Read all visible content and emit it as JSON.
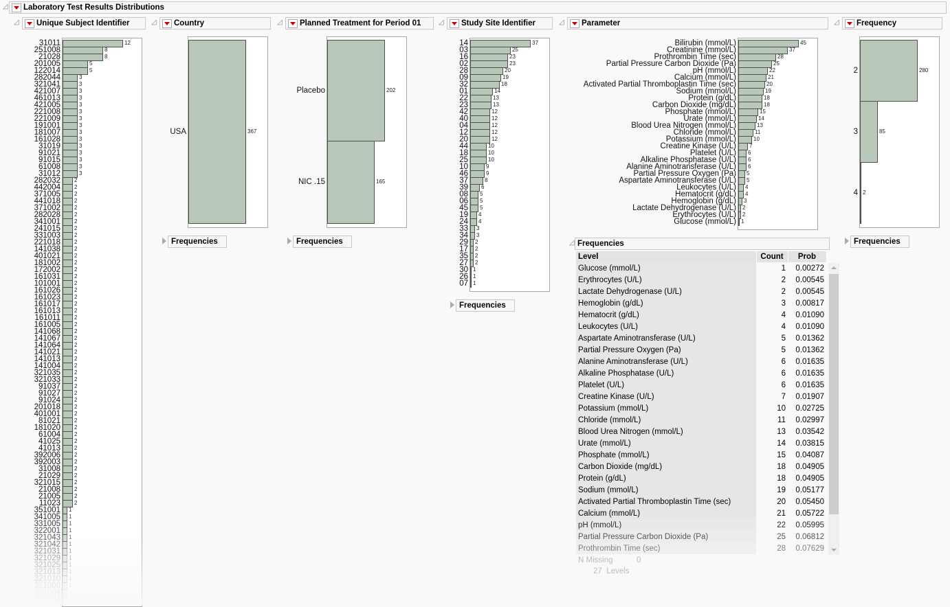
{
  "report": {
    "title": "Laboratory Test Results Distributions"
  },
  "frequencies_label": "Frequencies",
  "panels": [
    {
      "title": "Unique Subject Identifier",
      "levels": [
        "31011",
        "251008",
        "21028",
        "201005",
        "122014",
        "282044",
        "321041",
        "421007",
        "461013",
        "421005",
        "221008",
        "221009",
        "191001",
        "181007",
        "161028",
        "31019",
        "91021",
        "91015",
        "61008",
        "31012",
        "282032",
        "442004",
        "371005",
        "441018",
        "371002",
        "282028",
        "341001",
        "241015",
        "331003",
        "221018",
        "141038",
        "401021",
        "181002",
        "172002",
        "161031",
        "101001",
        "161026",
        "161023",
        "161017",
        "161013",
        "161011",
        "161005",
        "141068",
        "141067",
        "141064",
        "141021",
        "141013",
        "141004",
        "321035",
        "321033",
        "91037",
        "91027",
        "91024",
        "201018",
        "401001",
        "81021",
        "181020",
        "61004",
        "41025",
        "41013",
        "392006",
        "392003",
        "31008",
        "21029",
        "321015",
        "21008",
        "21005",
        "11023",
        "351001",
        "341005",
        "331005",
        "322001",
        "321043",
        "321042",
        "321031",
        "321029",
        "321025",
        "321013",
        "321010",
        "321006",
        "301004",
        "291004"
      ],
      "counts": [
        12,
        8,
        8,
        5,
        5,
        3,
        3,
        3,
        3,
        3,
        3,
        3,
        3,
        3,
        3,
        3,
        3,
        3,
        3,
        3,
        2,
        2,
        2,
        2,
        2,
        2,
        2,
        2,
        2,
        2,
        2,
        2,
        2,
        2,
        2,
        2,
        2,
        2,
        2,
        2,
        2,
        2,
        2,
        2,
        2,
        2,
        2,
        2,
        2,
        2,
        2,
        2,
        2,
        2,
        2,
        2,
        2,
        2,
        2,
        2,
        2,
        2,
        2,
        2,
        2,
        2,
        2,
        2,
        1,
        1,
        1,
        1,
        1,
        1,
        1,
        1,
        1,
        1,
        1,
        1,
        1,
        1
      ]
    },
    {
      "title": "Country",
      "levels": [
        "USA"
      ],
      "counts": [
        367
      ]
    },
    {
      "title": "Planned Treatment for Period 01",
      "levels": [
        "Placebo",
        "NIC .15"
      ],
      "counts": [
        202,
        165
      ]
    },
    {
      "title": "Study Site Identifier",
      "levels": [
        "14",
        "03",
        "16",
        "02",
        "28",
        "09",
        "32",
        "01",
        "22",
        "23",
        "42",
        "40",
        "04",
        "12",
        "20",
        "44",
        "18",
        "25",
        "10",
        "46",
        "37",
        "39",
        "08",
        "06",
        "45",
        "19",
        "24",
        "33",
        "34",
        "29",
        "17",
        "35",
        "27",
        "30",
        "26",
        "07"
      ],
      "counts": [
        37,
        25,
        23,
        23,
        20,
        19,
        18,
        14,
        13,
        13,
        12,
        12,
        12,
        12,
        12,
        10,
        10,
        10,
        9,
        9,
        8,
        6,
        5,
        5,
        5,
        4,
        4,
        3,
        3,
        2,
        2,
        2,
        2,
        1,
        1,
        1
      ]
    },
    {
      "title": "Parameter",
      "levels": [
        "Bilirubin (mmol/L)",
        "Creatinine (mmol/L)",
        "Prothrombin Time (sec)",
        "Partial Pressure Carbon Dioxide (Pa)",
        "pH (mmol/L)",
        "Calcium (mmol/L)",
        "Activated Partial Thromboplastin Time (sec)",
        "Sodium (mmol/L)",
        "Protein (g/dL)",
        "Carbon Dioxide (mg/dL)",
        "Phosphate (mmol/L)",
        "Urate (mmol/L)",
        "Blood Urea Nitrogen (mmol/L)",
        "Chloride (mmol/L)",
        "Potassium (mmol/L)",
        "Creatine Kinase (U/L)",
        "Platelet (U/L)",
        "Alkaline Phosphatase (U/L)",
        "Alanine Aminotransferase (U/L)",
        "Partial Pressure Oxygen (Pa)",
        "Aspartate Aminotransferase (U/L)",
        "Leukocytes (U/L)",
        "Hematocrit (g/dL)",
        "Hemoglobin (g/dL)",
        "Lactate Dehydrogenase (U/L)",
        "Erythrocytes (U/L)",
        "Glucose (mmol/L)"
      ],
      "counts": [
        45,
        37,
        28,
        25,
        22,
        21,
        20,
        19,
        18,
        18,
        15,
        14,
        13,
        11,
        10,
        7,
        6,
        6,
        6,
        5,
        5,
        4,
        4,
        3,
        2,
        2,
        1
      ]
    },
    {
      "title": "Frequency",
      "levels": [
        "2",
        "3",
        "4"
      ],
      "counts": [
        280,
        85,
        2
      ]
    }
  ],
  "freq_table": {
    "title": "Frequencies",
    "headers": [
      "Level",
      "Count",
      "Prob"
    ],
    "rows": [
      [
        "Glucose (mmol/L)",
        "1",
        "0.00272"
      ],
      [
        "Erythrocytes (U/L)",
        "2",
        "0.00545"
      ],
      [
        "Lactate Dehydrogenase (U/L)",
        "2",
        "0.00545"
      ],
      [
        "Hemoglobin (g/dL)",
        "3",
        "0.00817"
      ],
      [
        "Hematocrit (g/dL)",
        "4",
        "0.01090"
      ],
      [
        "Leukocytes (U/L)",
        "4",
        "0.01090"
      ],
      [
        "Aspartate Aminotransferase (U/L)",
        "5",
        "0.01362"
      ],
      [
        "Partial Pressure Oxygen (Pa)",
        "5",
        "0.01362"
      ],
      [
        "Alanine Aminotransferase (U/L)",
        "6",
        "0.01635"
      ],
      [
        "Alkaline Phosphatase (U/L)",
        "6",
        "0.01635"
      ],
      [
        "Platelet (U/L)",
        "6",
        "0.01635"
      ],
      [
        "Creatine Kinase (U/L)",
        "7",
        "0.01907"
      ],
      [
        "Potassium (mmol/L)",
        "10",
        "0.02725"
      ],
      [
        "Chloride (mmol/L)",
        "11",
        "0.02997"
      ],
      [
        "Blood Urea Nitrogen (mmol/L)",
        "13",
        "0.03542"
      ],
      [
        "Urate (mmol/L)",
        "14",
        "0.03815"
      ],
      [
        "Phosphate (mmol/L)",
        "15",
        "0.04087"
      ],
      [
        "Carbon Dioxide (mg/dL)",
        "18",
        "0.04905"
      ],
      [
        "Protein (g/dL)",
        "18",
        "0.04905"
      ],
      [
        "Sodium (mmol/L)",
        "19",
        "0.05177"
      ],
      [
        "Activated Partial Thromboplastin Time (sec)",
        "20",
        "0.05450"
      ],
      [
        "Calcium (mmol/L)",
        "21",
        "0.05722"
      ],
      [
        "pH (mmol/L)",
        "22",
        "0.05995"
      ],
      [
        "Partial Pressure Carbon Dioxide (Pa)",
        "25",
        "0.06812"
      ],
      [
        "Prothrombin Time (sec)",
        "28",
        "0.07629"
      ]
    ],
    "n_missing_label": "N Missing",
    "n_missing": "0",
    "levels_count": "27",
    "levels_label": "Levels"
  },
  "colors": {
    "bar_fill": "#bac8ba",
    "bar_stroke": "#4a524a",
    "menu_triangle": "#cc0000"
  }
}
